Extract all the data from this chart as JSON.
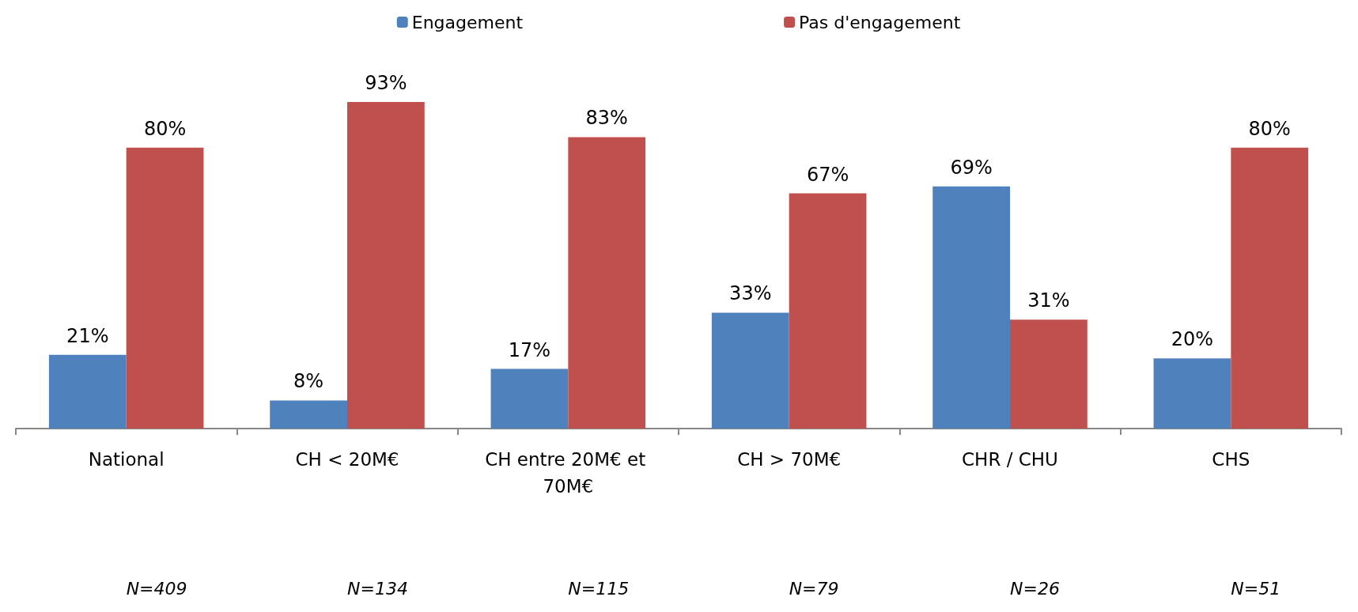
{
  "chart_data": {
    "type": "bar",
    "categories": [
      "National",
      "CH < 20M€",
      "CH entre 20M€ et 70M€",
      "CH > 70M€",
      "CHR / CHU",
      "CHS"
    ],
    "series": [
      {
        "name": "Engagement",
        "color": "#4f81bd",
        "values": [
          21,
          8,
          17,
          33,
          69,
          20
        ],
        "value_labels": [
          "21%",
          "8%",
          "17%",
          "33%",
          "69%",
          "20%"
        ]
      },
      {
        "name": "Pas d'engagement",
        "color": "#c0504d",
        "values": [
          80,
          93,
          83,
          67,
          31,
          80
        ],
        "value_labels": [
          "80%",
          "93%",
          "83%",
          "67%",
          "31%",
          "80%"
        ]
      }
    ],
    "annotations": [
      "N=409",
      "N=134",
      "N=115",
      "N=79",
      "N=26",
      "N=51"
    ],
    "legend": "top"
  }
}
